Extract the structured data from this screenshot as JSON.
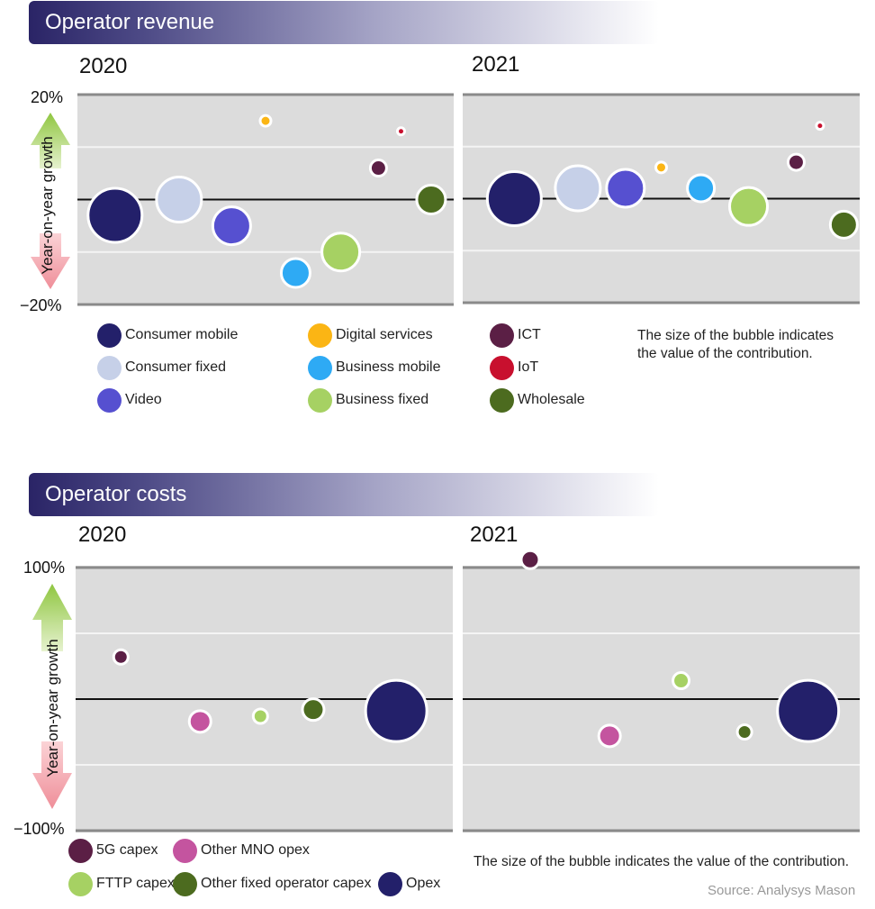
{
  "colors": {
    "consumer_mobile": "#23206a",
    "consumer_fixed": "#c6d0e8",
    "video": "#5650d0",
    "digital_services": "#fbb514",
    "business_mobile": "#2eaaf4",
    "business_fixed": "#a6d163",
    "ict": "#5b1f45",
    "iot": "#c8102e",
    "wholesale": "#4c6b1f",
    "capex_5g": "#5b1f45",
    "other_mno_opex": "#c4549f",
    "fttp_capex": "#a6d163",
    "other_fixed_capex": "#4c6b1f",
    "opex": "#23206a"
  },
  "revenue": {
    "title": "Operator revenue",
    "axis_title": "Year-on-year growth",
    "y_max_label": "20%",
    "y_min_label": "−20%",
    "note": "The size of the bubble indicates the value of the contribution.",
    "legend": [
      {
        "label": "Consumer mobile",
        "color": "#23206a"
      },
      {
        "label": "Digital services",
        "color": "#fbb514"
      },
      {
        "label": "ICT",
        "color": "#5b1f45"
      },
      {
        "label": "Consumer fixed",
        "color": "#c6d0e8"
      },
      {
        "label": "Business mobile",
        "color": "#2eaaf4"
      },
      {
        "label": "IoT",
        "color": "#c8102e"
      },
      {
        "label": "Video",
        "color": "#5650d0"
      },
      {
        "label": "Business fixed",
        "color": "#a6d163"
      },
      {
        "label": "Wholesale",
        "color": "#4c6b1f"
      }
    ]
  },
  "costs": {
    "title": "Operator costs",
    "axis_title": "Year-on-year growth",
    "y_max_label": "100%",
    "y_min_label": "−100%",
    "note": "The size of the bubble indicates the value of the contribution.",
    "legend": [
      {
        "label": "5G capex",
        "color": "#5b1f45"
      },
      {
        "label": "Other MNO opex",
        "color": "#c4549f"
      },
      {
        "label": "FTTP capex",
        "color": "#a6d163"
      },
      {
        "label": "Other fixed operator capex",
        "color": "#4c6b1f"
      },
      {
        "label": "Opex",
        "color": "#23206a"
      }
    ]
  },
  "source": "Source: Analysys Mason",
  "chart_data": [
    {
      "type": "scatter",
      "title": "2020",
      "ylim": [
        -20,
        20
      ],
      "bubbles": [
        {
          "series": "Consumer mobile",
          "x": 0.1,
          "y": -3,
          "size": 30
        },
        {
          "series": "Consumer fixed",
          "x": 0.27,
          "y": 0,
          "size": 25
        },
        {
          "series": "Video",
          "x": 0.41,
          "y": -5,
          "size": 21
        },
        {
          "series": "Business mobile",
          "x": 0.58,
          "y": -14,
          "size": 16
        },
        {
          "series": "Digital services",
          "x": 0.5,
          "y": 15,
          "size": 6
        },
        {
          "series": "Business fixed",
          "x": 0.7,
          "y": -10,
          "size": 21
        },
        {
          "series": "ICT",
          "x": 0.8,
          "y": 6,
          "size": 9
        },
        {
          "series": "IoT",
          "x": 0.86,
          "y": 13,
          "size": 4
        },
        {
          "series": "Wholesale",
          "x": 0.94,
          "y": 0,
          "size": 16
        }
      ]
    },
    {
      "type": "scatter",
      "title": "2021",
      "ylim": [
        -20,
        20
      ],
      "bubbles": [
        {
          "series": "Consumer mobile",
          "x": 0.13,
          "y": 0,
          "size": 30
        },
        {
          "series": "Consumer fixed",
          "x": 0.29,
          "y": 2,
          "size": 25
        },
        {
          "series": "Video",
          "x": 0.41,
          "y": 2,
          "size": 21
        },
        {
          "series": "Digital services",
          "x": 0.5,
          "y": 6,
          "size": 6
        },
        {
          "series": "Business mobile",
          "x": 0.6,
          "y": 2,
          "size": 15
        },
        {
          "series": "Business fixed",
          "x": 0.72,
          "y": -1.5,
          "size": 21
        },
        {
          "series": "ICT",
          "x": 0.84,
          "y": 7,
          "size": 9
        },
        {
          "series": "IoT",
          "x": 0.9,
          "y": 14,
          "size": 4
        },
        {
          "series": "Wholesale",
          "x": 0.96,
          "y": -5,
          "size": 15
        }
      ]
    },
    {
      "type": "scatter",
      "title": "2020",
      "ylim": [
        -100,
        100
      ],
      "bubbles": [
        {
          "series": "5G capex",
          "x": 0.12,
          "y": 32,
          "size": 8
        },
        {
          "series": "Other MNO opex",
          "x": 0.33,
          "y": -17,
          "size": 12
        },
        {
          "series": "FTTP capex",
          "x": 0.49,
          "y": -13,
          "size": 8
        },
        {
          "series": "Other fixed operator capex",
          "x": 0.63,
          "y": -8,
          "size": 12
        },
        {
          "series": "Opex",
          "x": 0.85,
          "y": -9,
          "size": 34
        }
      ]
    },
    {
      "type": "scatter",
      "title": "2021",
      "ylim": [
        -100,
        100
      ],
      "bubbles": [
        {
          "series": "5G capex",
          "x": 0.17,
          "y": 106,
          "size": 10
        },
        {
          "series": "Other MNO opex",
          "x": 0.37,
          "y": -28,
          "size": 12
        },
        {
          "series": "FTTP capex",
          "x": 0.55,
          "y": 14,
          "size": 9
        },
        {
          "series": "Other fixed operator capex",
          "x": 0.71,
          "y": -25,
          "size": 8
        },
        {
          "series": "Opex",
          "x": 0.87,
          "y": -9,
          "size": 34
        }
      ]
    }
  ]
}
